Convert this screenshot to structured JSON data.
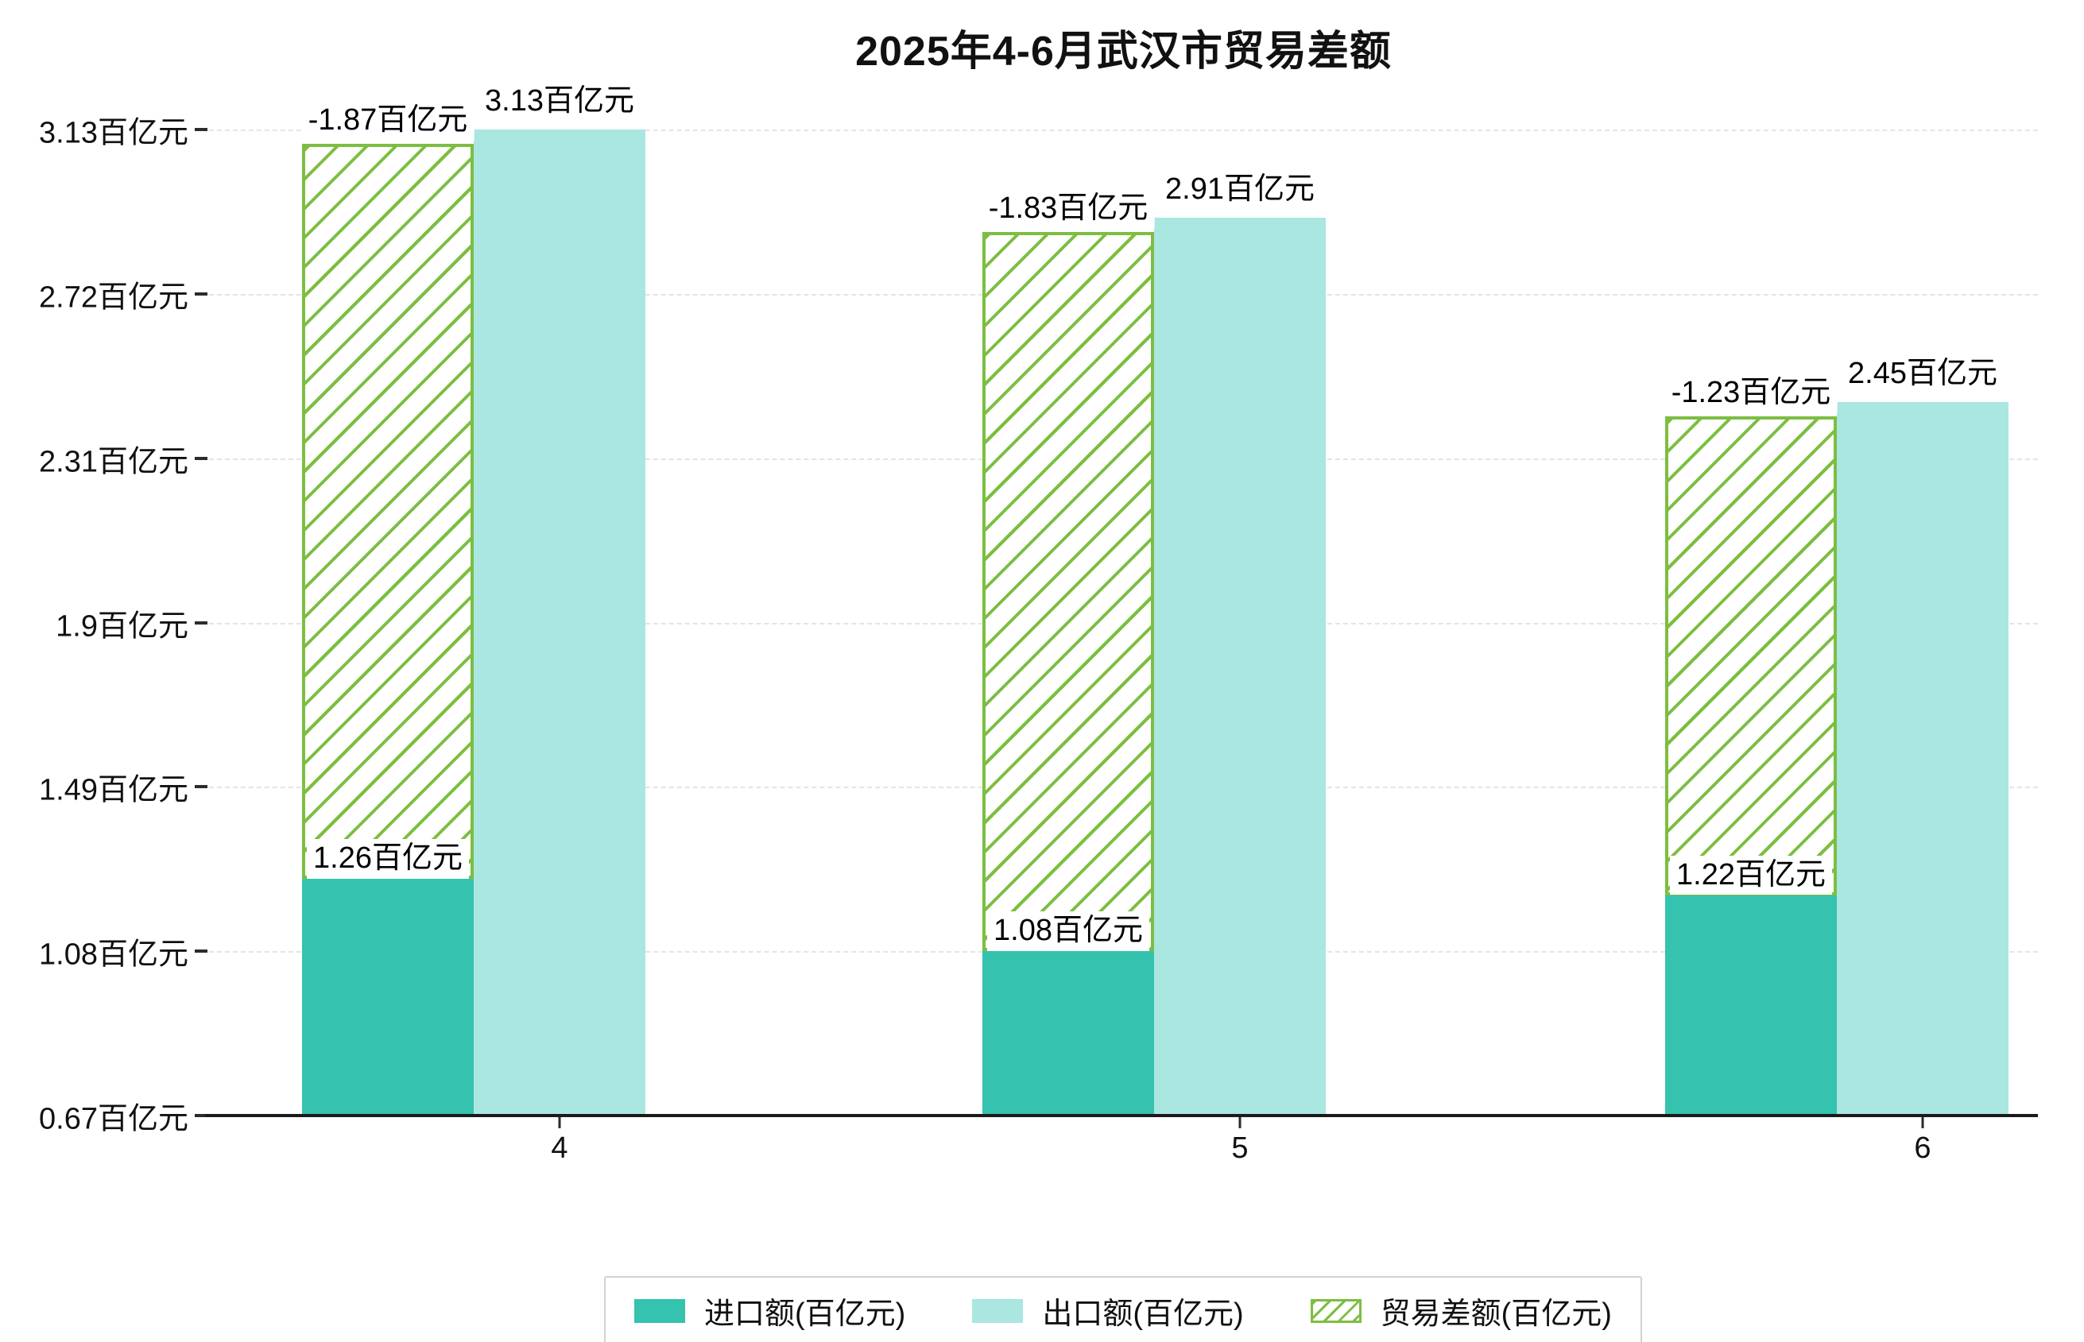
{
  "title": "2025年4-6月武汉市贸易差额",
  "chart_data": {
    "type": "bar",
    "title": "2025年4-6月武汉市贸易差额",
    "categories": [
      "4",
      "5",
      "6"
    ],
    "series": [
      {
        "name": "进口额(百亿元)",
        "style": "solid",
        "color": "#35c2ae",
        "values": [
          1.26,
          1.08,
          1.22
        ],
        "data_labels": [
          "1.26百亿元",
          "1.08百亿元",
          "1.22百亿元"
        ]
      },
      {
        "name": "出口额(百亿元)",
        "style": "solid",
        "color": "#a9e7e0",
        "values": [
          3.13,
          2.91,
          2.45
        ],
        "data_labels": [
          "3.13百亿元",
          "2.91百亿元",
          "2.45百亿元"
        ]
      },
      {
        "name": "贸易差额(百亿元)",
        "style": "hatched",
        "color": "#7cbe41",
        "values": [
          -1.87,
          -1.83,
          -1.23
        ],
        "data_labels": [
          "-1.87百亿元",
          "-1.83百亿元",
          "-1.23百亿元"
        ],
        "drawn_as": "hatched bar spanning from import bar top to export bar top, at import bar x-position"
      }
    ],
    "xlabel": "",
    "ylabel": "",
    "ylim": [
      0.67,
      3.13
    ],
    "y_ticks": [
      0.67,
      1.08,
      1.49,
      1.9,
      2.31,
      2.72,
      3.13
    ],
    "y_tick_labels": [
      "0.67百亿元",
      "1.08百亿元",
      "1.49百亿元",
      "1.9百亿元",
      "2.31百亿元",
      "2.72百亿元",
      "3.13百亿元"
    ],
    "grid": true,
    "legend_position": "bottom"
  },
  "colors": {
    "import": "#35c2ae",
    "export": "#a9e7e0",
    "balance": "#7cbe41",
    "grid": "#e4e4e4",
    "axis": "#1a1a1a",
    "label_bg": "#ffffff"
  }
}
